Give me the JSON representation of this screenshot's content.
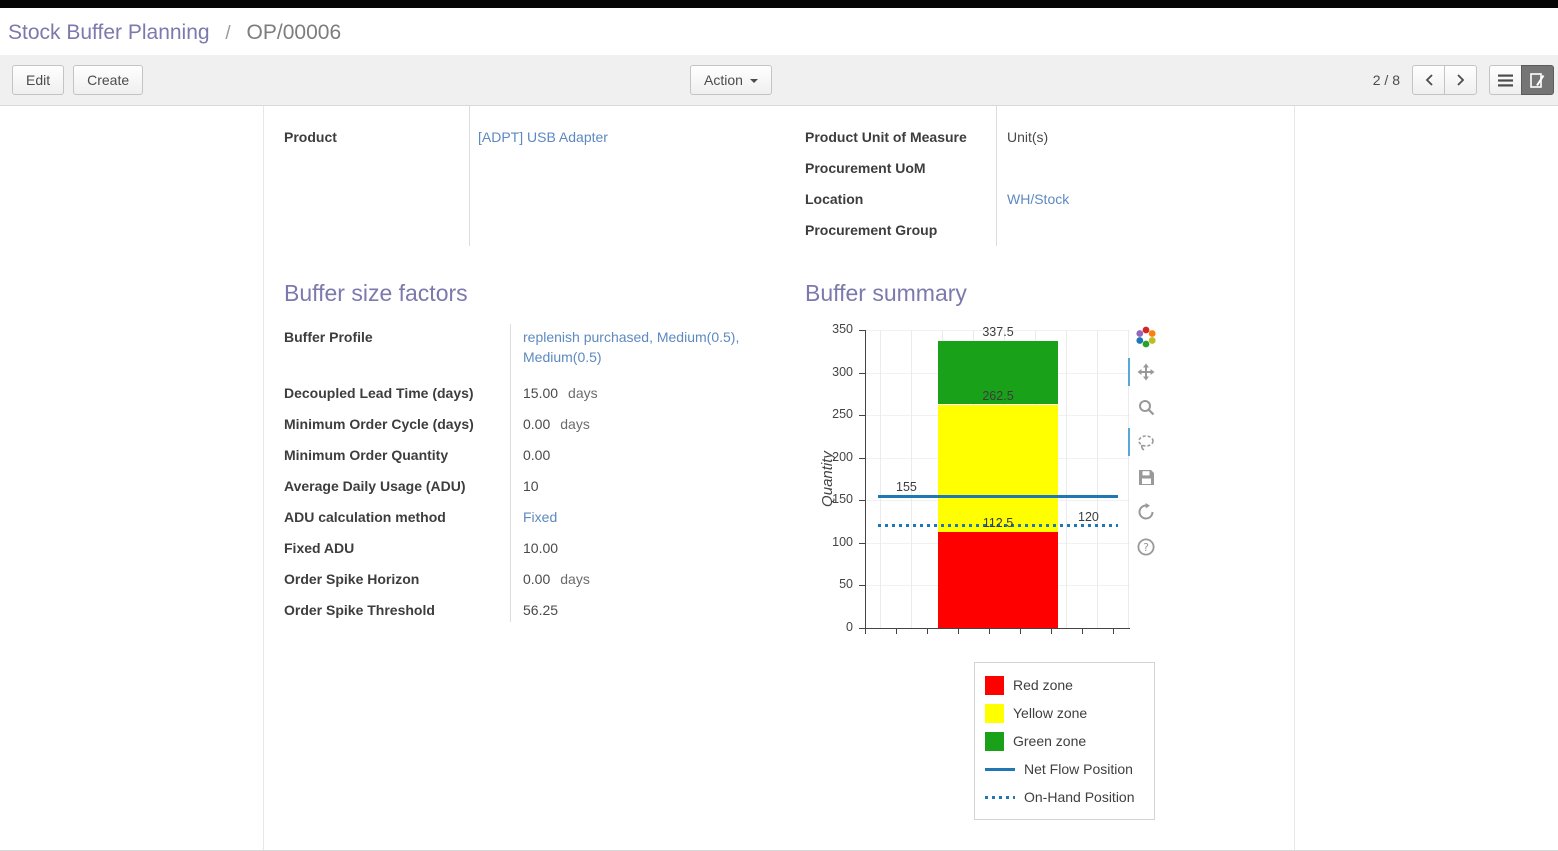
{
  "theme": {
    "heading_color": "#7b79ad",
    "link_color": "#5d89c0",
    "topbar_color": "#060606",
    "toolbar_bg": "#f0f0f0"
  },
  "breadcrumb": {
    "parent": "Stock Buffer Planning",
    "separator": "/",
    "current": "OP/00006"
  },
  "toolbar": {
    "edit_label": "Edit",
    "create_label": "Create",
    "action_label": "Action",
    "pager_text": "2 / 8"
  },
  "form": {
    "general_left": [
      {
        "label": "Product",
        "value": "[ADPT] USB Adapter",
        "link": true
      }
    ],
    "general_right": [
      {
        "label": "Product Unit of Measure",
        "value": "Unit(s)",
        "link": false
      },
      {
        "label": "Procurement UoM",
        "value": "",
        "link": false
      },
      {
        "label": "Location",
        "value": "WH/Stock",
        "link": true
      },
      {
        "label": "Procurement Group",
        "value": "",
        "link": false
      }
    ],
    "factors": {
      "title": "Buffer size factors",
      "rows": [
        {
          "label": "Buffer Profile",
          "value": "replenish purchased, Medium(0.5), Medium(0.5)",
          "link": true
        },
        {
          "label": "Decoupled Lead Time (days)",
          "value": "15.00",
          "suffix": "days"
        },
        {
          "label": "Minimum Order Cycle (days)",
          "value": "0.00",
          "suffix": "days"
        },
        {
          "label": "Minimum Order Quantity",
          "value": "0.00"
        },
        {
          "label": "Average Daily Usage (ADU)",
          "value": "10"
        },
        {
          "label": "ADU calculation method",
          "value": "Fixed",
          "link": true
        },
        {
          "label": "Fixed ADU",
          "value": "10.00"
        },
        {
          "label": "Order Spike Horizon",
          "value": "0.00",
          "suffix": "days"
        },
        {
          "label": "Order Spike Threshold",
          "value": "56.25"
        }
      ]
    },
    "summary": {
      "title": "Buffer summary"
    }
  },
  "chart_data": {
    "type": "bar",
    "title": "",
    "xlabel": "",
    "ylabel": "Quantity",
    "ylim": [
      0,
      350
    ],
    "yticks": [
      0,
      50,
      100,
      150,
      200,
      250,
      300,
      350
    ],
    "grid": "vertical",
    "zones": [
      {
        "name": "Red zone",
        "from": 0,
        "to": 112.5,
        "color": "#ff0000"
      },
      {
        "name": "Yellow zone",
        "from": 112.5,
        "to": 262.5,
        "color": "#ffff00"
      },
      {
        "name": "Green zone",
        "from": 262.5,
        "to": 337.5,
        "color": "#1aa11a"
      }
    ],
    "lines": [
      {
        "name": "Net Flow Position",
        "value": 155,
        "style": "solid",
        "color": "#1f77b4"
      },
      {
        "name": "On-Hand Position",
        "value": 120,
        "style": "dotted",
        "color": "#1f77b4"
      }
    ],
    "annotations": [
      {
        "text": "337.5",
        "value": 337.5,
        "align": "center"
      },
      {
        "text": "262.5",
        "value": 262.5,
        "align": "center"
      },
      {
        "text": "155",
        "value": 155,
        "align": "left"
      },
      {
        "text": "112.5",
        "value": 112.5,
        "align": "center"
      },
      {
        "text": "120",
        "value": 120,
        "align": "right"
      }
    ],
    "legend_position": "below-right",
    "legend": [
      {
        "label": "Red zone",
        "marker": "swatch",
        "color": "#ff0000"
      },
      {
        "label": "Yellow zone",
        "marker": "swatch",
        "color": "#ffff00"
      },
      {
        "label": "Green zone",
        "marker": "swatch",
        "color": "#1aa11a"
      },
      {
        "label": "Net Flow Position",
        "marker": "line",
        "color": "#1f77b4"
      },
      {
        "label": "On-Hand Position",
        "marker": "dotted",
        "color": "#1f77b4"
      }
    ]
  }
}
